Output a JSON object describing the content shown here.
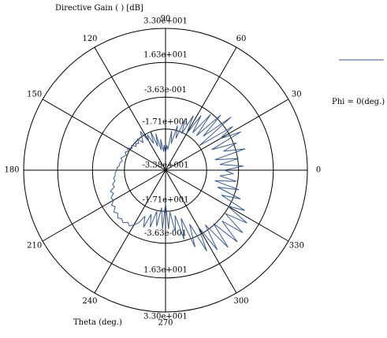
{
  "chart_data": {
    "type": "line",
    "title": "Directive Gain ( ) [dB]",
    "xlabel": "Theta (deg.)",
    "coordinate_system": "polar",
    "angle_ticks": [
      "0",
      "30",
      "60",
      "90",
      "120",
      "150",
      "180",
      "210",
      "240",
      "270",
      "300",
      "330"
    ],
    "radial_tick_labels": [
      "3.30e+001",
      "1.63e+001",
      "-3.63e-001",
      "-1.71e+001",
      "-3.38e+001"
    ],
    "radial_range": [
      -33.8,
      33.0
    ],
    "grid": true,
    "legend_position": "right",
    "series": [
      {
        "name": "Phi = 0(deg.)",
        "color": "#3a5a8a",
        "points": [
          [
            0,
            -6.0
          ],
          [
            3,
            3.0
          ],
          [
            6,
            -8.0
          ],
          [
            9,
            1.0
          ],
          [
            12,
            -10.0
          ],
          [
            15,
            5.0
          ],
          [
            18,
            -5.0
          ],
          [
            21,
            2.0
          ],
          [
            24,
            -10.0
          ],
          [
            27,
            6.0
          ],
          [
            30,
            -4.0
          ],
          [
            33,
            4.0
          ],
          [
            36,
            -14.0
          ],
          [
            39,
            6.0
          ],
          [
            42,
            -10.0
          ],
          [
            45,
            3.0
          ],
          [
            48,
            -12.0
          ],
          [
            51,
            0.0
          ],
          [
            54,
            -12.0
          ],
          [
            57,
            -3.0
          ],
          [
            60,
            -14.0
          ],
          [
            63,
            -5.0
          ],
          [
            66,
            -15.0
          ],
          [
            69,
            -8.0
          ],
          [
            72,
            -18.0
          ],
          [
            75,
            -12.0
          ],
          [
            78,
            -21.0
          ],
          [
            81,
            -15.0
          ],
          [
            84,
            -24.0
          ],
          [
            87,
            -22.0
          ],
          [
            90,
            -26.0
          ],
          [
            93,
            -22.0
          ],
          [
            96,
            -25.0
          ],
          [
            99,
            -19.0
          ],
          [
            102,
            -24.0
          ],
          [
            105,
            -16.0
          ],
          [
            108,
            -22.0
          ],
          [
            111,
            -14.0
          ],
          [
            114,
            -20.0
          ],
          [
            117,
            -15.0
          ],
          [
            120,
            -18.0
          ],
          [
            123,
            -12.0
          ],
          [
            126,
            -15.0
          ],
          [
            129,
            -17.0
          ],
          [
            132,
            -14.0
          ],
          [
            135,
            -16.0
          ],
          [
            138,
            -15.0
          ],
          [
            141,
            -16.0
          ],
          [
            144,
            -14.0
          ],
          [
            147,
            -15.0
          ],
          [
            150,
            -13.0
          ],
          [
            153,
            -14.0
          ],
          [
            156,
            -13.0
          ],
          [
            159,
            -14.0
          ],
          [
            162,
            -13.0
          ],
          [
            165,
            -12.0
          ],
          [
            168,
            -13.0
          ],
          [
            171,
            -12.0
          ],
          [
            174,
            -12.0
          ],
          [
            177,
            -11.0
          ],
          [
            180,
            -11.0
          ],
          [
            183,
            -10.0
          ],
          [
            186,
            -10.0
          ],
          [
            189,
            -9.0
          ],
          [
            192,
            -9.5
          ],
          [
            195,
            -8.0
          ],
          [
            198,
            -8.5
          ],
          [
            201,
            -6.0
          ],
          [
            204,
            -7.0
          ],
          [
            207,
            -5.0
          ],
          [
            210,
            -5.5
          ],
          [
            213,
            -3.5
          ],
          [
            216,
            -4.5
          ],
          [
            219,
            -2.5
          ],
          [
            222,
            -3.5
          ],
          [
            225,
            -2.0
          ],
          [
            228,
            -3.0
          ],
          [
            231,
            -2.0
          ],
          [
            234,
            -3.5
          ],
          [
            237,
            -2.5
          ],
          [
            240,
            -4.0
          ],
          [
            243,
            -6.0
          ],
          [
            246,
            -10.0
          ],
          [
            249,
            -5.0
          ],
          [
            252,
            -12.0
          ],
          [
            255,
            -6.0
          ],
          [
            258,
            -14.0
          ],
          [
            261,
            -7.0
          ],
          [
            264,
            -16.0
          ],
          [
            267,
            -6.0
          ],
          [
            270,
            -18.0
          ],
          [
            273,
            -6.0
          ],
          [
            276,
            -14.0
          ],
          [
            279,
            -4.0
          ],
          [
            282,
            -12.0
          ],
          [
            285,
            0.0
          ],
          [
            288,
            -10.0
          ],
          [
            291,
            5.0
          ],
          [
            294,
            -6.0
          ],
          [
            297,
            9.0
          ],
          [
            300,
            -3.0
          ],
          [
            303,
            11.0
          ],
          [
            306,
            -2.0
          ],
          [
            309,
            13.0
          ],
          [
            312,
            0.0
          ],
          [
            315,
            14.0
          ],
          [
            318,
            2.0
          ],
          [
            321,
            13.0
          ],
          [
            324,
            1.0
          ],
          [
            327,
            12.0
          ],
          [
            330,
            0.0
          ],
          [
            333,
            8.0
          ],
          [
            336,
            -5.0
          ],
          [
            339,
            4.0
          ],
          [
            342,
            -8.0
          ],
          [
            345,
            2.0
          ],
          [
            348,
            -10.0
          ],
          [
            351,
            0.0
          ],
          [
            354,
            -8.0
          ],
          [
            357,
            -2.0
          ]
        ]
      }
    ]
  }
}
